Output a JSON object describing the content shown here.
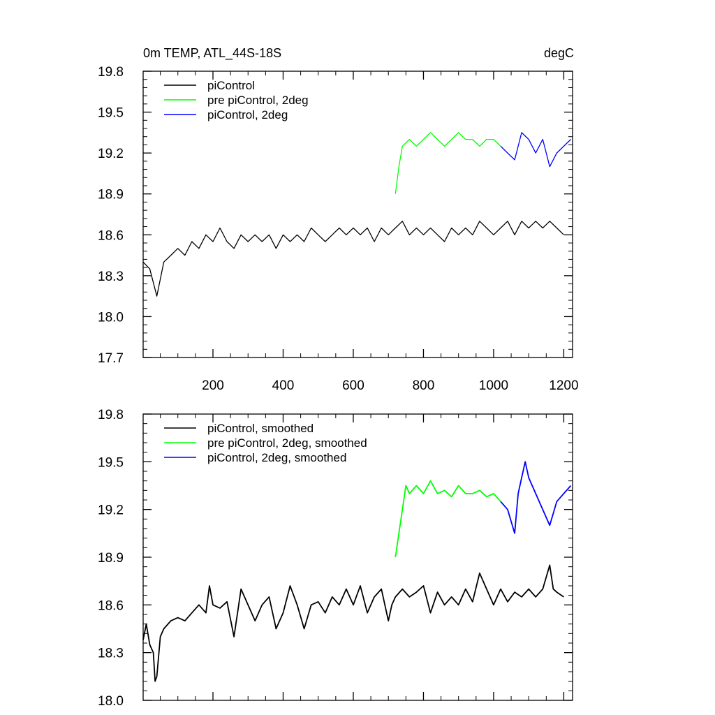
{
  "chart_data": [
    {
      "type": "line",
      "title": "0m TEMP, ATL_44S-18S",
      "units": "degC",
      "xlabel": "",
      "ylabel": "",
      "xlim": [
        1,
        1225
      ],
      "ylim": [
        17.7,
        19.8
      ],
      "xticks": [
        200,
        400,
        600,
        800,
        1000,
        1200
      ],
      "yticks": [
        17.7,
        18.0,
        18.3,
        18.6,
        18.9,
        19.2,
        19.5,
        19.8
      ],
      "ytick_labels": [
        "17.7",
        "18.0",
        "18.3",
        "18.6",
        "18.9",
        "19.2",
        "19.5",
        "19.8"
      ],
      "xtick_labels": [
        "200",
        "400",
        "600",
        "800",
        "1000",
        "1200"
      ],
      "grid": false,
      "legend_position": "top-left",
      "series": [
        {
          "name": "piControl",
          "color": "#000000",
          "x": [
            1,
            20,
            40,
            60,
            80,
            100,
            120,
            140,
            160,
            180,
            200,
            220,
            240,
            260,
            280,
            300,
            320,
            340,
            360,
            380,
            400,
            420,
            440,
            460,
            480,
            500,
            520,
            540,
            560,
            580,
            600,
            620,
            640,
            660,
            680,
            700,
            720,
            740,
            760,
            780,
            800,
            820,
            840,
            860,
            880,
            900,
            920,
            940,
            960,
            980,
            1000,
            1020,
            1040,
            1060,
            1080,
            1100,
            1120,
            1140,
            1160,
            1180,
            1200
          ],
          "values": [
            18.4,
            18.35,
            18.15,
            18.4,
            18.45,
            18.5,
            18.45,
            18.55,
            18.5,
            18.6,
            18.55,
            18.65,
            18.55,
            18.5,
            18.6,
            18.55,
            18.6,
            18.55,
            18.6,
            18.5,
            18.6,
            18.55,
            18.6,
            18.55,
            18.65,
            18.6,
            18.55,
            18.6,
            18.65,
            18.6,
            18.65,
            18.6,
            18.65,
            18.55,
            18.65,
            18.6,
            18.65,
            18.7,
            18.6,
            18.65,
            18.6,
            18.65,
            18.6,
            18.55,
            18.65,
            18.6,
            18.65,
            18.6,
            18.7,
            18.65,
            18.6,
            18.65,
            18.7,
            18.6,
            18.7,
            18.65,
            18.7,
            18.65,
            18.7,
            18.65,
            18.6
          ]
        },
        {
          "name": "pre piControl, 2deg",
          "color": "#00ff00",
          "x": [
            720,
            730,
            740,
            760,
            780,
            800,
            820,
            840,
            860,
            880,
            900,
            920,
            940,
            960,
            980,
            1000,
            1020
          ],
          "values": [
            18.9,
            19.1,
            19.25,
            19.3,
            19.25,
            19.3,
            19.35,
            19.3,
            19.25,
            19.3,
            19.35,
            19.3,
            19.3,
            19.25,
            19.3,
            19.3,
            19.25
          ]
        },
        {
          "name": "piControl, 2deg",
          "color": "#0000ff",
          "x": [
            1020,
            1040,
            1060,
            1080,
            1100,
            1120,
            1140,
            1160,
            1180,
            1200,
            1220
          ],
          "values": [
            19.25,
            19.2,
            19.15,
            19.35,
            19.3,
            19.2,
            19.3,
            19.1,
            19.2,
            19.25,
            19.3
          ]
        }
      ]
    },
    {
      "type": "line",
      "title": "",
      "xlabel": "",
      "ylabel": "",
      "xlim": [
        1,
        1225
      ],
      "ylim": [
        18.0,
        19.8
      ],
      "yticks": [
        18.0,
        18.3,
        18.6,
        18.9,
        19.2,
        19.5,
        19.8
      ],
      "ytick_labels": [
        "18.0",
        "18.3",
        "18.6",
        "18.9",
        "19.2",
        "19.5",
        "19.8"
      ],
      "xticks": [
        200,
        400,
        600,
        800,
        1000,
        1200
      ],
      "grid": false,
      "legend_position": "top-left",
      "series": [
        {
          "name": "piControl, smoothed",
          "color": "#000000",
          "x": [
            1,
            10,
            20,
            30,
            35,
            40,
            50,
            60,
            80,
            100,
            120,
            140,
            160,
            180,
            190,
            200,
            220,
            240,
            260,
            270,
            280,
            300,
            320,
            340,
            360,
            380,
            400,
            420,
            440,
            460,
            480,
            500,
            520,
            540,
            560,
            580,
            600,
            620,
            640,
            660,
            680,
            700,
            710,
            720,
            740,
            760,
            780,
            800,
            820,
            840,
            860,
            880,
            900,
            920,
            940,
            960,
            980,
            1000,
            1020,
            1040,
            1060,
            1080,
            1100,
            1120,
            1140,
            1160,
            1170,
            1180,
            1200
          ],
          "values": [
            18.38,
            18.48,
            18.35,
            18.3,
            18.12,
            18.15,
            18.4,
            18.45,
            18.5,
            18.52,
            18.5,
            18.55,
            18.6,
            18.55,
            18.72,
            18.6,
            18.58,
            18.62,
            18.4,
            18.55,
            18.7,
            18.6,
            18.5,
            18.6,
            18.65,
            18.45,
            18.55,
            18.72,
            18.6,
            18.45,
            18.6,
            18.62,
            18.55,
            18.65,
            18.6,
            18.7,
            18.6,
            18.72,
            18.55,
            18.65,
            18.7,
            18.5,
            18.6,
            18.65,
            18.7,
            18.65,
            18.68,
            18.72,
            18.55,
            18.68,
            18.6,
            18.65,
            18.6,
            18.7,
            18.62,
            18.8,
            18.7,
            18.6,
            18.7,
            18.62,
            18.68,
            18.65,
            18.7,
            18.65,
            18.7,
            18.85,
            18.7,
            18.68,
            18.65
          ]
        },
        {
          "name": "pre piControl, 2deg, smoothed",
          "color": "#00ff00",
          "x": [
            720,
            730,
            740,
            750,
            760,
            780,
            800,
            820,
            840,
            860,
            880,
            900,
            920,
            940,
            960,
            980,
            1000,
            1020
          ],
          "values": [
            18.9,
            19.05,
            19.2,
            19.35,
            19.3,
            19.35,
            19.3,
            19.38,
            19.3,
            19.32,
            19.28,
            19.35,
            19.3,
            19.3,
            19.32,
            19.28,
            19.3,
            19.25
          ]
        },
        {
          "name": "piControl, 2deg, smoothed",
          "color": "#0000ff",
          "x": [
            1020,
            1040,
            1060,
            1070,
            1080,
            1090,
            1100,
            1120,
            1140,
            1160,
            1180,
            1200,
            1220
          ],
          "values": [
            19.25,
            19.2,
            19.05,
            19.3,
            19.4,
            19.5,
            19.4,
            19.3,
            19.2,
            19.1,
            19.25,
            19.3,
            19.35
          ]
        }
      ]
    }
  ]
}
